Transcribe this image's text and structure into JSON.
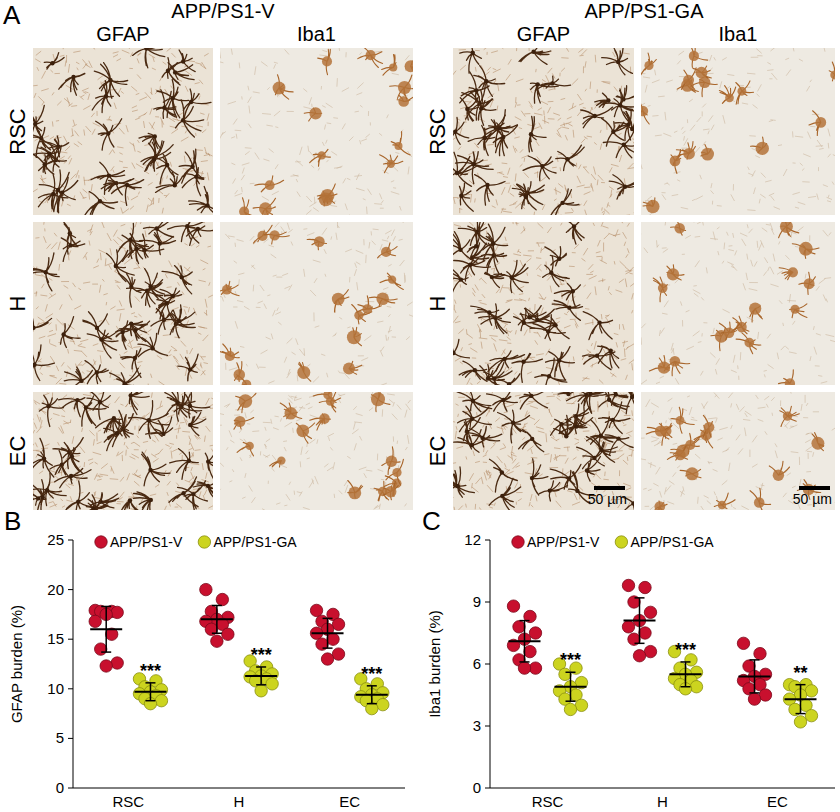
{
  "micrographs": {
    "panel": "A",
    "groups": [
      {
        "title": "APP/PS1-V",
        "columns": [
          "GFAP",
          "Iba1"
        ]
      },
      {
        "title": "APP/PS1-GA",
        "columns": [
          "GFAP",
          "Iba1"
        ]
      }
    ],
    "rows": [
      "RSC",
      "H",
      "EC"
    ],
    "scale_bar": "50 µm"
  },
  "chart_data": [
    {
      "type": "dot",
      "panel": "B",
      "y_label": "GFAP burden (%)",
      "categories": [
        "RSC",
        "H",
        "EC"
      ],
      "ylim": [
        0,
        25
      ],
      "yticks": [
        0,
        5,
        10,
        15,
        20,
        25
      ],
      "legend": "top-left",
      "series": [
        {
          "name": "APP/PS1-V",
          "color": "#c8102e",
          "values": [
            [
              17.9,
              17.8,
              17.8,
              17.7,
              17.5,
              16.8,
              15.5,
              14.0,
              12.6,
              12.3
            ],
            [
              20.0,
              19.0,
              17.8,
              17.2,
              17.0,
              16.8,
              16.5,
              16.0,
              15.5,
              14.8
            ],
            [
              17.9,
              17.5,
              16.8,
              16.5,
              16.0,
              15.6,
              15.0,
              14.5,
              13.5,
              13.0
            ]
          ],
          "mean": [
            16.0,
            17.0,
            15.6
          ],
          "sd": [
            2.3,
            1.4,
            1.5
          ]
        },
        {
          "name": "APP/PS1-GA",
          "color": "#ccd41f",
          "values": [
            [
              11.0,
              10.8,
              10.2,
              9.9,
              9.7,
              9.5,
              9.3,
              9.0,
              8.8,
              8.5
            ],
            [
              12.8,
              12.2,
              11.8,
              11.5,
              11.3,
              11.2,
              11.0,
              10.8,
              10.5,
              9.8
            ],
            [
              11.0,
              10.5,
              10.0,
              9.6,
              9.4,
              9.2,
              9.0,
              8.8,
              8.4,
              8.0
            ]
          ],
          "mean": [
            9.7,
            11.3,
            9.4
          ],
          "sd": [
            0.9,
            0.9,
            0.9
          ]
        }
      ],
      "significance": [
        "***",
        "***",
        "***"
      ]
    },
    {
      "type": "dot",
      "panel": "C",
      "y_label": "Iba1 burden (%)",
      "categories": [
        "RSC",
        "H",
        "EC"
      ],
      "ylim": [
        0,
        12
      ],
      "yticks": [
        0,
        3,
        6,
        9,
        12
      ],
      "legend": "top-left",
      "series": [
        {
          "name": "APP/PS1-V",
          "color": "#c8102e",
          "values": [
            [
              8.8,
              8.3,
              7.8,
              7.5,
              7.2,
              6.9,
              6.6,
              6.2,
              5.8,
              5.8
            ],
            [
              9.8,
              9.7,
              9.0,
              8.5,
              8.1,
              7.8,
              7.5,
              7.2,
              6.6,
              6.4
            ],
            [
              7.0,
              6.5,
              5.9,
              5.5,
              5.4,
              5.2,
              5.0,
              4.8,
              4.5,
              4.3
            ]
          ],
          "mean": [
            7.1,
            8.1,
            5.4
          ],
          "sd": [
            1.0,
            1.1,
            0.8
          ]
        },
        {
          "name": "APP/PS1-GA",
          "color": "#ccd41f",
          "values": [
            [
              6.0,
              5.8,
              5.5,
              5.1,
              4.9,
              4.7,
              4.5,
              4.3,
              4.0,
              3.8
            ],
            [
              6.6,
              6.2,
              5.8,
              5.6,
              5.5,
              5.3,
              5.2,
              5.0,
              4.9,
              4.8
            ],
            [
              5.0,
              5.0,
              4.9,
              4.7,
              4.5,
              4.3,
              4.0,
              3.8,
              3.5,
              3.2
            ]
          ],
          "mean": [
            4.9,
            5.5,
            4.3
          ],
          "sd": [
            0.7,
            0.6,
            0.7
          ]
        }
      ],
      "significance": [
        "***",
        "***",
        "**"
      ]
    }
  ]
}
